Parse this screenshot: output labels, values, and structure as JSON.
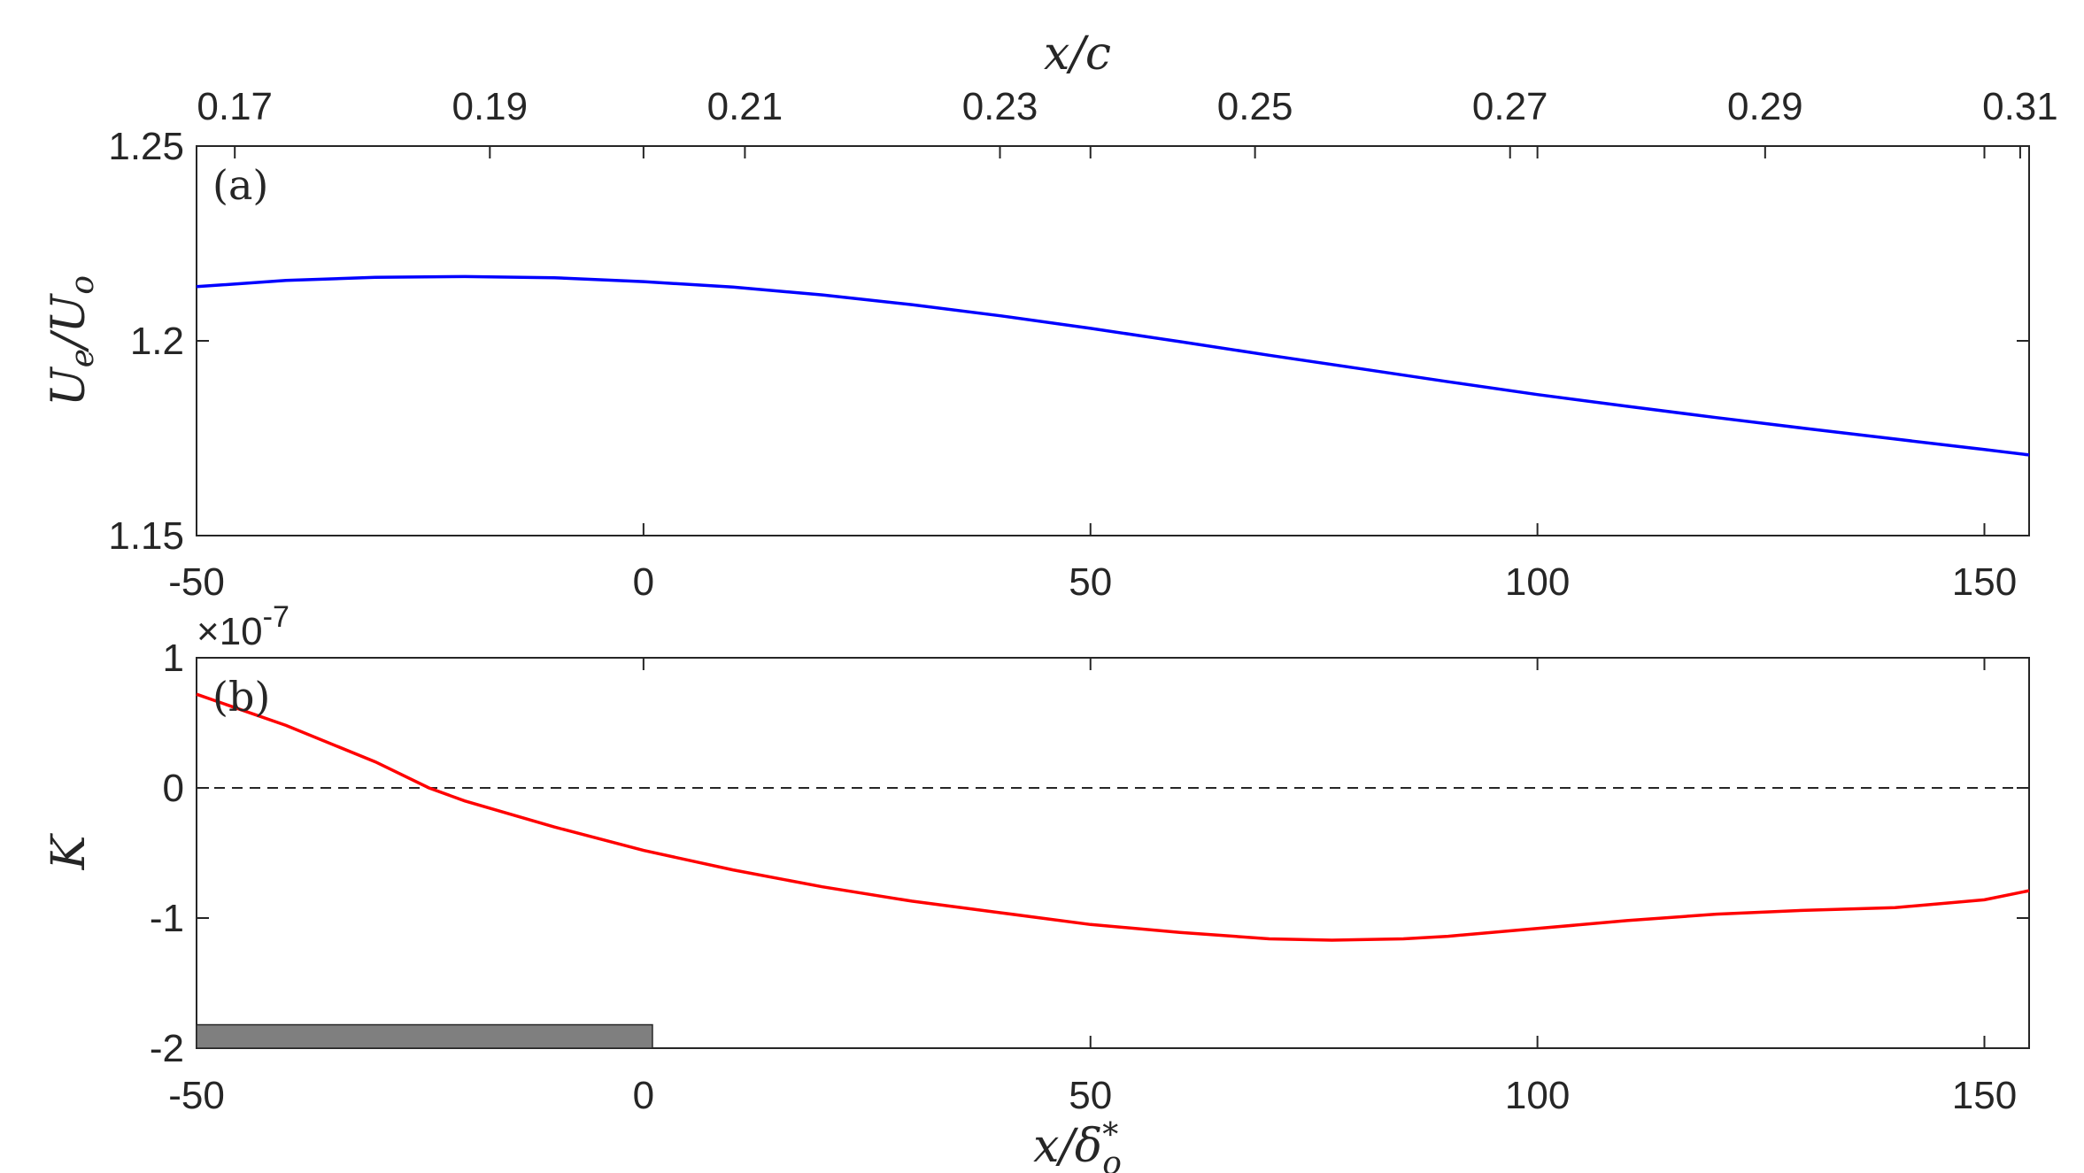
{
  "chart_data": [
    {
      "type": "line",
      "panel_label": "(a)",
      "xlim": [
        -50,
        155
      ],
      "ylim": [
        1.15,
        1.25
      ],
      "xticks": [
        -50,
        0,
        50,
        100,
        150
      ],
      "xtick_labels": [
        "-50",
        "0",
        "50",
        "100",
        "150"
      ],
      "yticks": [
        1.15,
        1.2,
        1.25
      ],
      "ytick_labels": [
        "1.15",
        "1.2",
        "1.25"
      ],
      "ylabel": "Ue/Uo",
      "top_axis": {
        "label": "x/c",
        "ticks": [
          0.17,
          0.19,
          0.21,
          0.23,
          0.25,
          0.27,
          0.29,
          0.31
        ],
        "tick_labels": [
          "0.17",
          "0.19",
          "0.21",
          "0.23",
          "0.25",
          "0.27",
          "0.29",
          "0.31"
        ],
        "xlim": [
          0.167,
          0.3107
        ]
      },
      "series": [
        {
          "color": "#0000ff",
          "x": [
            -50,
            -40,
            -30,
            -20,
            -10,
            0,
            10,
            20,
            30,
            40,
            50,
            60,
            70,
            80,
            90,
            100,
            110,
            120,
            130,
            140,
            150,
            155
          ],
          "y": [
            1.2139,
            1.2155,
            1.2163,
            1.2165,
            1.2162,
            1.2152,
            1.2138,
            1.2118,
            1.2093,
            1.2064,
            1.2032,
            1.1998,
            1.1963,
            1.1929,
            1.1895,
            1.1862,
            1.1832,
            1.1803,
            1.1775,
            1.1748,
            1.1721,
            1.1707
          ]
        }
      ]
    },
    {
      "type": "line",
      "panel_label": "(b)",
      "xlim": [
        -50,
        155
      ],
      "ylim": [
        -2,
        1
      ],
      "exponent_label": "×10",
      "exponent_power": "-7",
      "xticks": [
        -50,
        0,
        50,
        100,
        150
      ],
      "xtick_labels": [
        "-50",
        "0",
        "50",
        "100",
        "150"
      ],
      "yticks": [
        -2,
        -1,
        0,
        1
      ],
      "ytick_labels": [
        "-2",
        "-1",
        "0",
        "1"
      ],
      "ylabel": "K",
      "xlabel": "x/δo*",
      "series": [
        {
          "color": "#ff0000",
          "x": [
            -50,
            -40,
            -30,
            -24,
            -20,
            -10,
            0,
            10,
            20,
            30,
            40,
            50,
            60,
            70,
            77,
            85,
            90,
            100,
            110,
            120,
            130,
            140,
            150,
            155
          ],
          "y": [
            0.72,
            0.48,
            0.2,
            0.0,
            -0.1,
            -0.3,
            -0.48,
            -0.63,
            -0.76,
            -0.87,
            -0.96,
            -1.05,
            -1.11,
            -1.16,
            -1.17,
            -1.16,
            -1.14,
            -1.08,
            -1.02,
            -0.97,
            -0.94,
            -0.92,
            -0.86,
            -0.79
          ]
        }
      ],
      "reference_line": {
        "y": 0,
        "color": "#262626",
        "style": "dashed"
      },
      "bar": {
        "x": [
          -50,
          1
        ],
        "y": [
          -2,
          -1.82
        ],
        "color": "#7f7f7f"
      }
    }
  ]
}
